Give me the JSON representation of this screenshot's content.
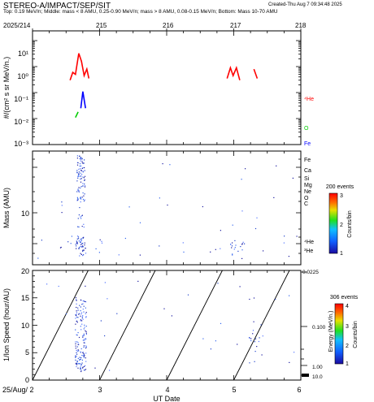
{
  "header": {
    "title": "STEREO-A/IMPACT/SEP/SIT",
    "created": "Created-Thu Aug  7 09:34:48 2025",
    "subtitle": "Top: 0.19 MeV/n; Middle: mass < 8 AMU, 0.25-0.90 MeV/n; mass > 8 AMU, 0.08-0.15 MeV/n; Bottom: Mass 10-70 AMU"
  },
  "colors": {
    "He": "#ff0000",
    "O": "#00cc00",
    "Fe": "#0000ff",
    "text": "#000000",
    "axis": "#000000"
  },
  "chart_data": [
    {
      "type": "line",
      "panel": "top",
      "ylabel": "#/(cm² s sr MeV/n.)",
      "yscale": "log",
      "ylim": [
        0.001,
        10
      ],
      "ytick_labels": [
        "10⁻³",
        "10⁻²",
        "10⁻¹",
        "10⁰",
        "10¹"
      ],
      "xlim": [
        214,
        218
      ],
      "top_tick_labels": [
        "2025/214",
        "215",
        "216",
        "217",
        "218"
      ],
      "series": [
        {
          "name": "⁴He",
          "color": "#ff0000",
          "segments": [
            [
              [
                214.56,
                0.3
              ],
              [
                214.6,
                0.6
              ],
              [
                214.64,
                0.5
              ],
              [
                214.69,
                3.2
              ],
              [
                214.73,
                1.6
              ],
              [
                214.77,
                0.45
              ],
              [
                214.81,
                0.8
              ],
              [
                214.84,
                0.35
              ]
            ],
            [
              [
                216.9,
                0.35
              ],
              [
                216.95,
                0.9
              ],
              [
                216.99,
                0.45
              ],
              [
                217.04,
                0.9
              ],
              [
                217.09,
                0.3
              ]
            ],
            [
              [
                217.3,
                0.8
              ],
              [
                217.35,
                0.35
              ]
            ]
          ]
        },
        {
          "name": "O",
          "color": "#00cc00",
          "segments": [
            [
              [
                214.64,
                0.011
              ],
              [
                214.68,
                0.018
              ]
            ]
          ]
        },
        {
          "name": "Fe",
          "color": "#0000ff",
          "segments": [
            [
              [
                214.72,
                0.025
              ],
              [
                214.75,
                0.11
              ],
              [
                214.79,
                0.025
              ]
            ]
          ]
        }
      ]
    },
    {
      "type": "scatter",
      "panel": "middle",
      "ylabel": "Mass (AMU)",
      "yscale": "log",
      "ylim": [
        2.5,
        80
      ],
      "ytick_labels": [
        "10"
      ],
      "xlim": [
        214,
        218
      ],
      "element_labels": [
        "Fe",
        "Ca",
        "Si",
        "Mg",
        "Ne",
        "O",
        "C",
        "⁴He",
        "³He"
      ],
      "colorbar": {
        "events": "200 events",
        "label": "Counts/bin",
        "ticks": [
          "3",
          "2",
          "1"
        ]
      }
    },
    {
      "type": "scatter",
      "panel": "bottom",
      "ylabel": "1/Ion Speed (hour/AU)",
      "xlabel": "UT Date",
      "ylim": [
        0,
        20
      ],
      "ytick_labels": [
        "0",
        "5",
        "10",
        "15",
        "20"
      ],
      "xlim": [
        2,
        6
      ],
      "xtick_labels": [
        "25/Aug/ 2",
        "3",
        "4",
        "5",
        "6"
      ],
      "right_axis_label": "Energy (MeV/n.)",
      "right_tick_labels": [
        "0.0225",
        "0.100",
        "1.00",
        "10.0"
      ],
      "colorbar": {
        "events": "306 events",
        "label": "Counts/bin",
        "ticks": [
          "4",
          "3",
          "2",
          "1"
        ]
      }
    }
  ]
}
